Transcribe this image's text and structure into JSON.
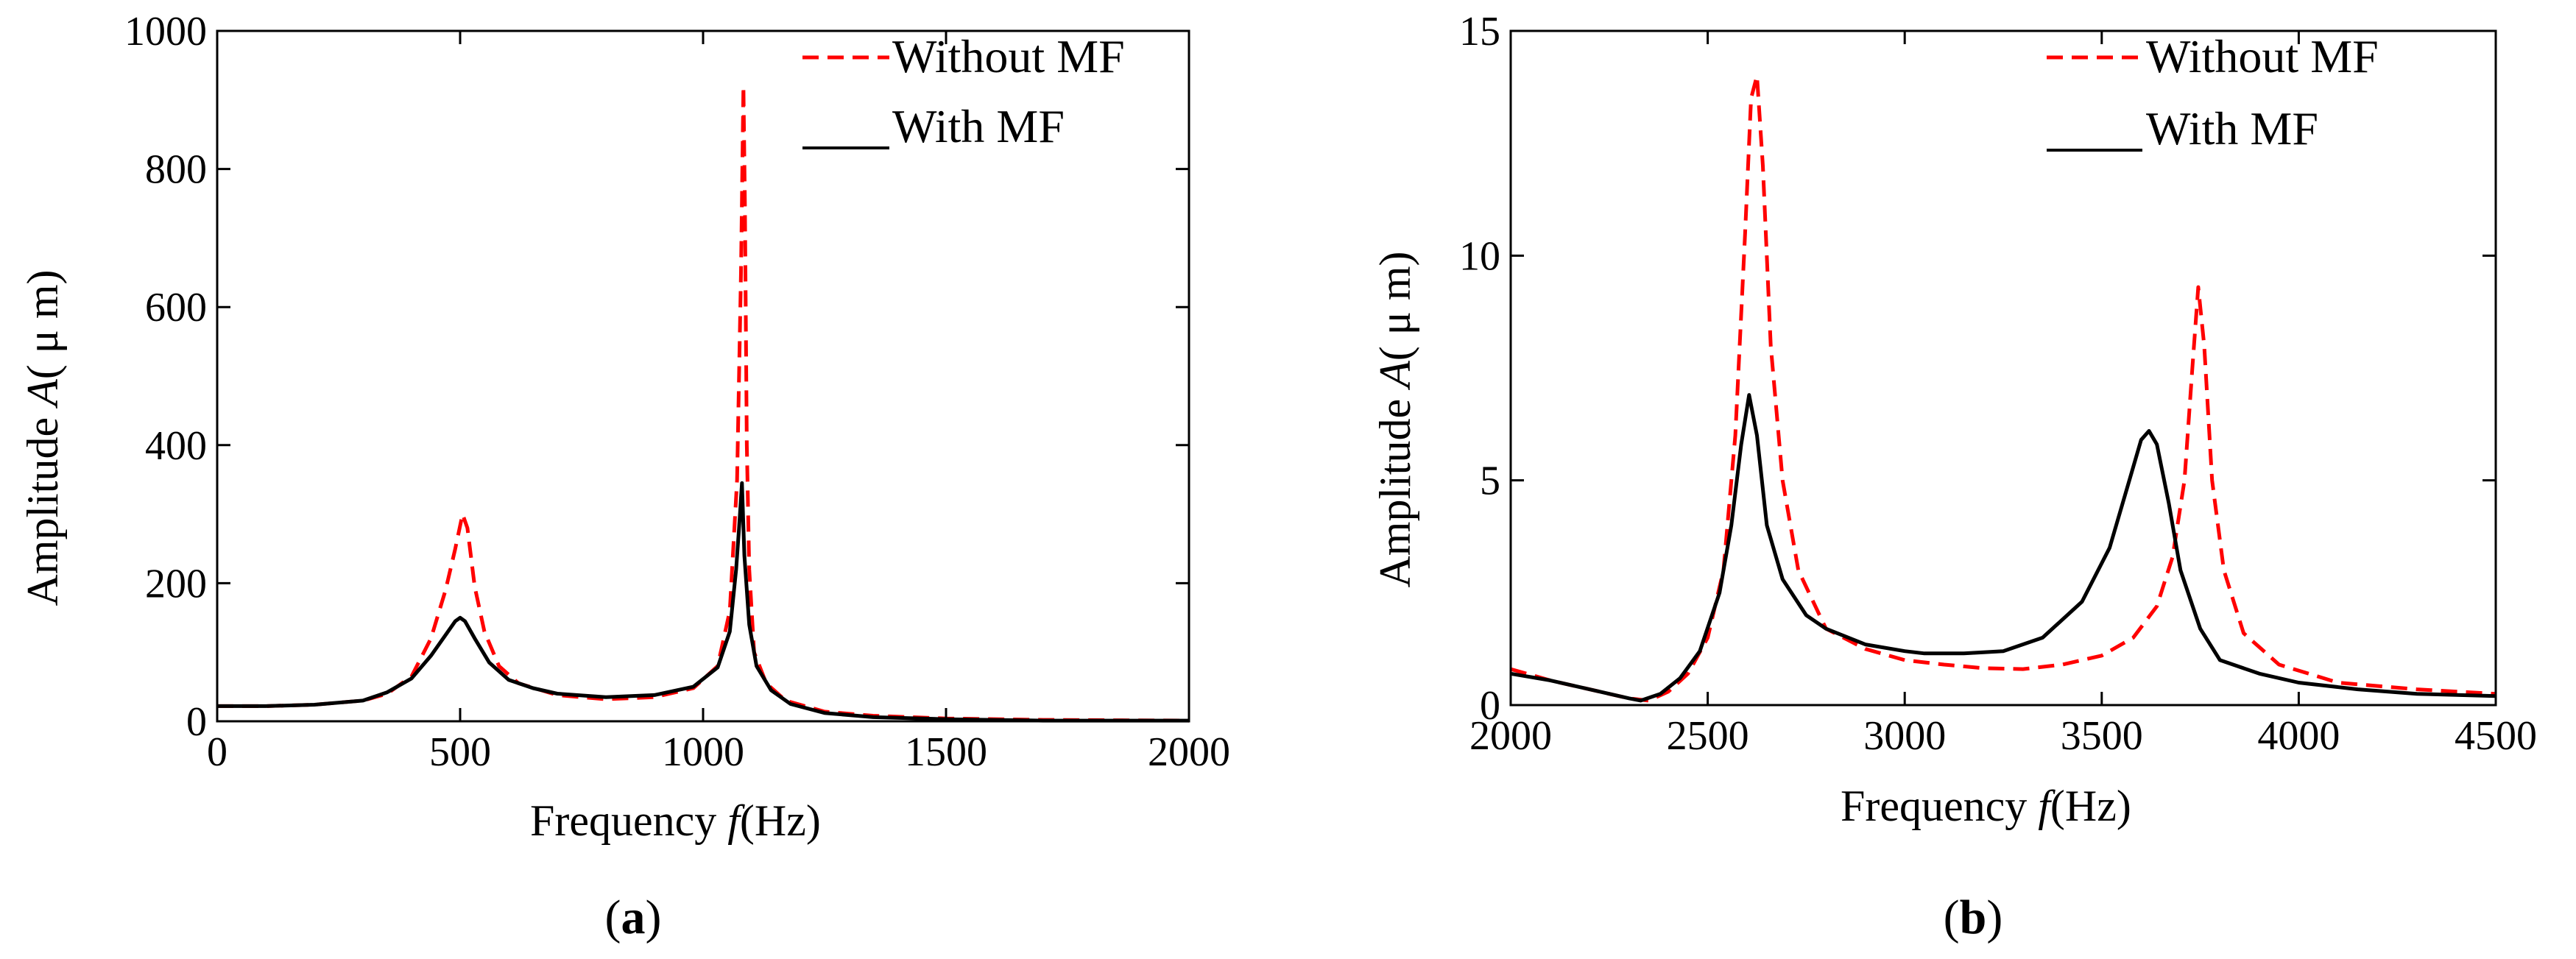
{
  "chart_data": [
    {
      "type": "line",
      "panel": "a",
      "caption": "(a)",
      "caption_letter": "a",
      "xlabel": "Frequency",
      "xlabel_var": "f",
      "xlabel_unit": "(Hz)",
      "ylabel": "Amplitude",
      "ylabel_var": "A",
      "ylabel_unit": "( μ m)",
      "xlim": [
        0,
        2000
      ],
      "ylim": [
        0,
        1000
      ],
      "xticks": [
        "0",
        "500",
        "1000",
        "1500",
        "2000"
      ],
      "yticks": [
        "0",
        "200",
        "400",
        "600",
        "800",
        "1000"
      ],
      "grid": false,
      "legend_position": "top-right",
      "series": [
        {
          "name": "Without MF",
          "style": "dashed",
          "color": "#ff0000",
          "x": [
            0,
            100,
            200,
            300,
            350,
            400,
            440,
            470,
            490,
            505,
            515,
            530,
            550,
            580,
            620,
            700,
            800,
            900,
            980,
            1030,
            1055,
            1070,
            1078,
            1083,
            1086,
            1090,
            1095,
            1105,
            1130,
            1170,
            1250,
            1350,
            1500,
            1700,
            2000
          ],
          "y": [
            22,
            22,
            24,
            30,
            40,
            65,
            120,
            190,
            250,
            300,
            280,
            195,
            130,
            80,
            55,
            38,
            32,
            35,
            48,
            80,
            160,
            350,
            650,
            920,
            750,
            400,
            220,
            100,
            55,
            30,
            14,
            8,
            4,
            2,
            1
          ]
        },
        {
          "name": "With MF",
          "style": "solid",
          "color": "#000000",
          "x": [
            0,
            100,
            200,
            300,
            350,
            400,
            440,
            470,
            490,
            500,
            510,
            530,
            560,
            600,
            650,
            700,
            800,
            900,
            980,
            1030,
            1055,
            1068,
            1075,
            1080,
            1085,
            1095,
            1110,
            1140,
            1180,
            1250,
            1350,
            1500,
            1700,
            2000
          ],
          "y": [
            22,
            22,
            24,
            30,
            42,
            62,
            95,
            125,
            145,
            150,
            145,
            120,
            85,
            60,
            48,
            40,
            35,
            38,
            50,
            78,
            130,
            220,
            290,
            345,
            240,
            140,
            80,
            45,
            25,
            12,
            6,
            3,
            1,
            1
          ]
        }
      ]
    },
    {
      "type": "line",
      "panel": "b",
      "caption": "(b)",
      "caption_letter": "b",
      "xlabel": "Frequency",
      "xlabel_var": "f",
      "xlabel_unit": "(Hz)",
      "ylabel": "Amplitude",
      "ylabel_var": "A",
      "ylabel_unit": "( μ m)",
      "xlim": [
        2000,
        4500
      ],
      "ylim": [
        0,
        15
      ],
      "xticks": [
        "2000",
        "2500",
        "3000",
        "3500",
        "4000",
        "4500"
      ],
      "yticks": [
        "0",
        "5",
        "10",
        "15"
      ],
      "grid": false,
      "legend_position": "top-right",
      "series": [
        {
          "name": "Without MF",
          "style": "dashed",
          "color": "#ff0000",
          "x": [
            2000,
            2100,
            2200,
            2300,
            2350,
            2400,
            2450,
            2500,
            2540,
            2570,
            2595,
            2610,
            2625,
            2640,
            2660,
            2690,
            2730,
            2800,
            2900,
            3000,
            3100,
            3200,
            3300,
            3400,
            3500,
            3580,
            3640,
            3680,
            3710,
            3730,
            3745,
            3760,
            3780,
            3810,
            3860,
            3950,
            4100,
            4300,
            4500
          ],
          "y": [
            0.8,
            0.55,
            0.35,
            0.15,
            0.1,
            0.3,
            0.7,
            1.5,
            3.0,
            6.0,
            10.5,
            13.5,
            14.0,
            12.0,
            8.0,
            5.0,
            3.0,
            1.7,
            1.25,
            1.0,
            0.9,
            0.82,
            0.8,
            0.9,
            1.1,
            1.5,
            2.2,
            3.3,
            5.0,
            7.5,
            9.3,
            8.0,
            5.0,
            3.0,
            1.6,
            0.9,
            0.5,
            0.35,
            0.25
          ]
        },
        {
          "name": "With MF",
          "style": "solid",
          "color": "#000000",
          "x": [
            2000,
            2100,
            2200,
            2300,
            2330,
            2380,
            2430,
            2480,
            2530,
            2560,
            2585,
            2605,
            2625,
            2650,
            2690,
            2750,
            2800,
            2900,
            3000,
            3050,
            3150,
            3250,
            3350,
            3450,
            3520,
            3570,
            3600,
            3620,
            3640,
            3670,
            3700,
            3750,
            3800,
            3900,
            4000,
            4150,
            4300,
            4500
          ],
          "y": [
            0.7,
            0.55,
            0.35,
            0.15,
            0.1,
            0.25,
            0.6,
            1.2,
            2.5,
            4.0,
            5.8,
            6.9,
            6.0,
            4.0,
            2.8,
            2.0,
            1.7,
            1.35,
            1.2,
            1.15,
            1.15,
            1.2,
            1.5,
            2.3,
            3.5,
            5.0,
            5.9,
            6.1,
            5.8,
            4.5,
            3.0,
            1.7,
            1.0,
            0.7,
            0.5,
            0.35,
            0.25,
            0.2
          ]
        }
      ]
    }
  ]
}
